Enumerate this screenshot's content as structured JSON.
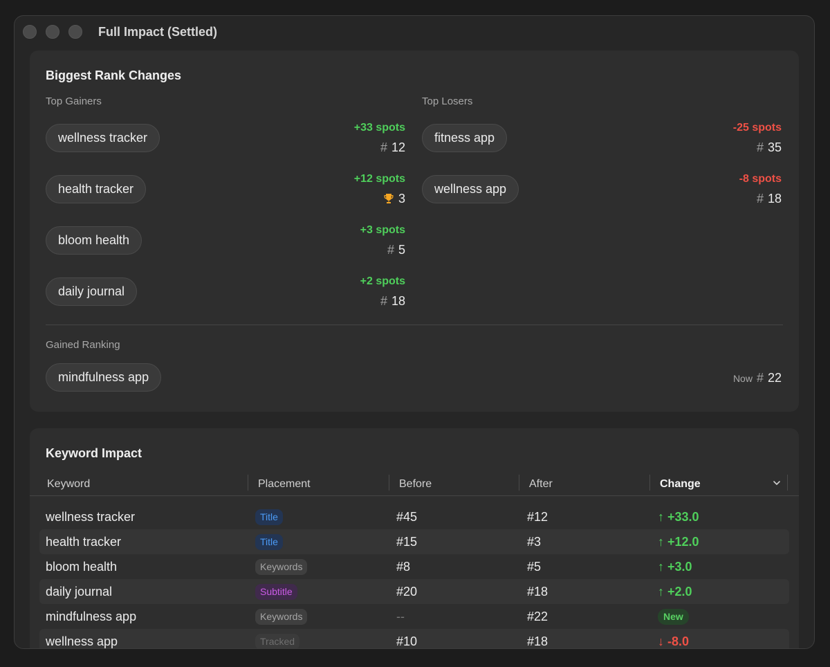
{
  "window": {
    "title": "Full Impact (Settled)"
  },
  "rank_changes": {
    "title": "Biggest Rank Changes",
    "gainers_label": "Top Gainers",
    "losers_label": "Top Losers",
    "gainers": [
      {
        "keyword": "wellness tracker",
        "delta": "+33 spots",
        "rank": "12",
        "icon": "hash-icon"
      },
      {
        "keyword": "health tracker",
        "delta": "+12 spots",
        "rank": "3",
        "icon": "trophy-icon"
      },
      {
        "keyword": "bloom health",
        "delta": "+3 spots",
        "rank": "5",
        "icon": "hash-icon"
      },
      {
        "keyword": "daily journal",
        "delta": "+2 spots",
        "rank": "18",
        "icon": "hash-icon"
      }
    ],
    "losers": [
      {
        "keyword": "fitness app",
        "delta": "-25 spots",
        "rank": "35",
        "icon": "hash-icon"
      },
      {
        "keyword": "wellness app",
        "delta": "-8 spots",
        "rank": "18",
        "icon": "hash-icon"
      }
    ],
    "gained_ranking_label": "Gained Ranking",
    "gained": [
      {
        "keyword": "mindfulness app",
        "now_label": "Now",
        "rank": "22"
      }
    ]
  },
  "keyword_impact": {
    "title": "Keyword Impact",
    "columns": [
      "Keyword",
      "Placement",
      "Before",
      "After",
      "Change"
    ],
    "sorted_column": "Change",
    "rows": [
      {
        "keyword": "wellness tracker",
        "placement": "Title",
        "before": "#45",
        "after": "#12",
        "change": "↑ +33.0",
        "direction": "up"
      },
      {
        "keyword": "health tracker",
        "placement": "Title",
        "before": "#15",
        "after": "#3",
        "change": "↑ +12.0",
        "direction": "up"
      },
      {
        "keyword": "bloom health",
        "placement": "Keywords",
        "before": "#8",
        "after": "#5",
        "change": "↑ +3.0",
        "direction": "up"
      },
      {
        "keyword": "daily journal",
        "placement": "Subtitle",
        "before": "#20",
        "after": "#18",
        "change": "↑ +2.0",
        "direction": "up"
      },
      {
        "keyword": "mindfulness app",
        "placement": "Keywords",
        "before": "--",
        "after": "#22",
        "change": "New",
        "direction": "new"
      },
      {
        "keyword": "wellness app",
        "placement": "Tracked",
        "before": "#10",
        "after": "#18",
        "change": "↓ -8.0",
        "direction": "down"
      }
    ]
  },
  "colors": {
    "gain": "#4fcf5b",
    "loss": "#ef5146",
    "badge_title": "#4b9af5",
    "badge_subtitle": "#cb5be6",
    "badge_keywords": "#a6a6a6",
    "badge_tracked": "#6f6f6f"
  }
}
